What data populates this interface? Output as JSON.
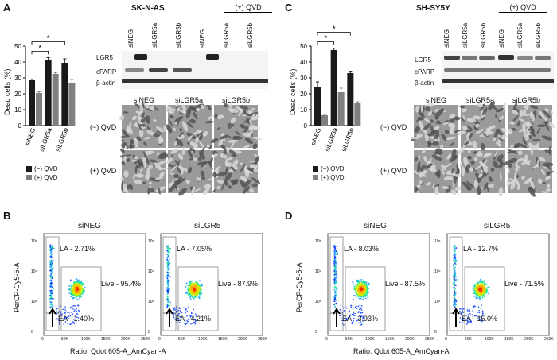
{
  "panels": {
    "A": {
      "letter": "A",
      "cell_line": "SK-N-AS",
      "qvd_header": "(+) QVD",
      "blot_lanes": [
        "siNEG",
        "siLGR5a",
        "siLGR5b",
        "siNEG",
        "siLGR5a",
        "siLGR5b"
      ],
      "blot_rows": [
        "LGR5",
        "cPARP",
        "β-actin"
      ],
      "micro_cols": [
        "siNEG",
        "siLGR5a",
        "siLGR5b"
      ],
      "micro_rows": [
        "(−) QVD",
        "(+) QVD"
      ],
      "ylabel": "Dead cells (%)",
      "yticks": [
        "0",
        "10",
        "20",
        "30",
        "40",
        "50"
      ],
      "star": "*",
      "legend": [
        "(−) QVD",
        "(+) QVD"
      ]
    },
    "C": {
      "letter": "C",
      "cell_line": "SH-SY5Y",
      "qvd_header": "(+) QVD",
      "blot_lanes": [
        "siNEG",
        "siLGR5a",
        "siLGR5b",
        "siNEG",
        "siLGR5a",
        "siLGR5b"
      ],
      "blot_rows": [
        "LGR5",
        "cPARP",
        "β-actin"
      ],
      "micro_cols": [
        "siNEG",
        "siLGR5a",
        "siLGR5b"
      ],
      "micro_rows": [
        "(−) QVD",
        "(+) QVD"
      ],
      "ylabel": "Dead cells (%)",
      "yticks": [
        "0",
        "10",
        "20",
        "30",
        "40",
        "50"
      ],
      "star": "*",
      "legend": [
        "(−) QVD",
        "(+) QVD"
      ]
    },
    "B": {
      "letter": "B",
      "ylabel": "PerCP-Cy5-5-A",
      "xlabel": "Ratio: Qdot 605-A_AmCyan-A",
      "plots": [
        {
          "title": "siNEG",
          "la": "LA - 2.71%",
          "live": "Live - 95.4%",
          "ea": "EA - 1.40%"
        },
        {
          "title": "siLGR5",
          "la": "LA - 7.05%",
          "live": "Live - 87.9%",
          "ea": "EA - 4.21%"
        }
      ]
    },
    "D": {
      "letter": "D",
      "ylabel": "PerCP-Cy5-5-A",
      "xlabel": "Ratio: Qdot 605-A_AmCyan-A",
      "plots": [
        {
          "title": "siNEG",
          "la": "LA - 8.03%",
          "live": "Live - 87.5%",
          "ea": "EA - 3.93%"
        },
        {
          "title": "siLGR5",
          "la": "LA - 12.7%",
          "live": "Live - 71.5%",
          "ea": "EA - 15.0%"
        }
      ]
    }
  },
  "flow_axis": {
    "yticks": [
      "0",
      "10³",
      "10⁴",
      "10⁵"
    ],
    "xticks": [
      "0",
      "50K",
      "100K",
      "150K",
      "200K",
      "250K"
    ]
  },
  "chart_data": [
    {
      "type": "bar",
      "title": "SK-N-AS",
      "categories": [
        "siNEG",
        "siLGR5a",
        "siLGR5b"
      ],
      "series": [
        {
          "name": "(−) QVD",
          "values": [
            28.5,
            41,
            39.5
          ],
          "errors": [
            0.8,
            1.8,
            2.5
          ]
        },
        {
          "name": "(+) QVD",
          "values": [
            20.5,
            32.5,
            27
          ],
          "errors": [
            0.8,
            0.8,
            2
          ]
        }
      ],
      "ylabel": "Dead cells (%)",
      "ylim": [
        0,
        50
      ],
      "colors": [
        "#1a1a1a",
        "#808080"
      ]
    },
    {
      "type": "bar",
      "title": "SH-SY5Y",
      "categories": [
        "siNEG",
        "siLGR5a",
        "siLGR5b"
      ],
      "series": [
        {
          "name": "(−) QVD",
          "values": [
            24,
            47.5,
            33
          ],
          "errors": [
            3.5,
            1.2,
            1.2
          ]
        },
        {
          "name": "(+) QVD",
          "values": [
            6.5,
            21,
            14.5
          ],
          "errors": [
            0.5,
            2.5,
            0.5
          ]
        }
      ],
      "ylabel": "Dead cells (%)",
      "ylim": [
        0,
        50
      ],
      "colors": [
        "#1a1a1a",
        "#808080"
      ]
    }
  ]
}
